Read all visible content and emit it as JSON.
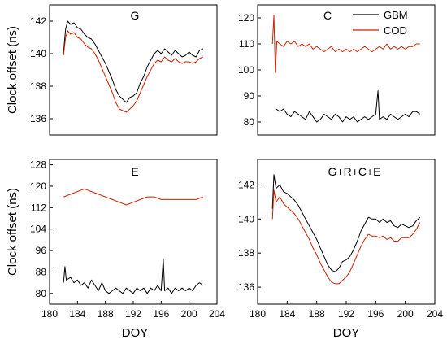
{
  "chart_data": [
    {
      "type": "line",
      "title": "G",
      "ylabel": "Clock offset (ns)",
      "xlabel": "",
      "xlim": [
        180,
        204
      ],
      "ylim": [
        135,
        143
      ],
      "yticks": [
        136,
        138,
        140,
        142
      ],
      "grid": false,
      "series": [
        {
          "name": "GBM",
          "color": "#000000",
          "x": [
            182.0,
            182.3,
            182.6,
            183.0,
            183.5,
            184.0,
            184.5,
            185.0,
            185.5,
            186.0,
            186.5,
            187.0,
            187.5,
            188.0,
            188.5,
            189.0,
            189.5,
            190.0,
            190.5,
            191.0,
            191.5,
            192.0,
            192.5,
            193.0,
            193.5,
            194.0,
            194.5,
            195.0,
            195.5,
            196.0,
            196.5,
            197.0,
            197.5,
            198.0,
            198.5,
            199.0,
            199.5,
            200.0,
            200.5,
            201.0,
            201.5,
            202.0
          ],
          "y": [
            140.1,
            141.5,
            142.0,
            141.8,
            141.9,
            141.6,
            141.5,
            141.2,
            141.0,
            140.9,
            140.6,
            140.2,
            139.8,
            139.4,
            138.9,
            138.4,
            137.8,
            137.4,
            137.2,
            137.0,
            137.3,
            137.4,
            137.6,
            138.2,
            138.6,
            139.2,
            139.6,
            140.0,
            140.2,
            140.0,
            140.3,
            140.1,
            139.9,
            140.2,
            140.0,
            139.8,
            139.9,
            140.1,
            139.9,
            139.8,
            140.2,
            140.3
          ]
        },
        {
          "name": "COD",
          "color": "#cc2200",
          "x": [
            182.0,
            182.3,
            182.6,
            183.0,
            183.5,
            184.0,
            184.5,
            185.0,
            185.5,
            186.0,
            186.5,
            187.0,
            187.5,
            188.0,
            188.5,
            189.0,
            189.5,
            190.0,
            190.5,
            191.0,
            191.5,
            192.0,
            192.5,
            193.0,
            193.5,
            194.0,
            194.5,
            195.0,
            195.5,
            196.0,
            196.5,
            197.0,
            197.5,
            198.0,
            198.5,
            199.0,
            199.5,
            200.0,
            200.5,
            201.0,
            201.5,
            202.0
          ],
          "y": [
            139.9,
            141.0,
            141.4,
            141.2,
            141.3,
            141.0,
            140.9,
            140.6,
            140.4,
            140.3,
            140.0,
            139.6,
            139.1,
            138.6,
            138.1,
            137.6,
            137.0,
            136.6,
            136.5,
            136.4,
            136.6,
            136.8,
            137.1,
            137.6,
            138.1,
            138.6,
            139.0,
            139.4,
            139.6,
            139.5,
            139.8,
            139.6,
            139.5,
            139.7,
            139.5,
            139.4,
            139.5,
            139.5,
            139.4,
            139.5,
            139.7,
            139.8
          ]
        }
      ]
    },
    {
      "type": "line",
      "title": "C",
      "ylabel": "",
      "xlabel": "",
      "xlim": [
        180,
        204
      ],
      "ylim": [
        75,
        125
      ],
      "yticks": [
        80,
        90,
        100,
        110,
        120
      ],
      "grid": false,
      "series": [
        {
          "name": "GBM",
          "color": "#000000",
          "x": [
            182.5,
            183.0,
            183.5,
            184.0,
            184.5,
            185.0,
            185.5,
            186.0,
            186.5,
            187.0,
            187.5,
            188.0,
            188.5,
            189.0,
            189.5,
            190.0,
            190.5,
            191.0,
            191.5,
            192.0,
            192.5,
            193.0,
            193.5,
            194.0,
            194.5,
            195.0,
            195.5,
            196.0,
            196.3,
            196.5,
            197.0,
            197.5,
            198.0,
            198.5,
            199.0,
            199.5,
            200.0,
            200.5,
            201.0,
            201.5,
            202.0
          ],
          "y": [
            85,
            84,
            85,
            83,
            82,
            84,
            83,
            82,
            81,
            84,
            82,
            80,
            81,
            83,
            82,
            81,
            83,
            82,
            80,
            82,
            81,
            82,
            80,
            81,
            82,
            81,
            82,
            83,
            92,
            81,
            82,
            81,
            83,
            82,
            81,
            82,
            83,
            82,
            84,
            84,
            83
          ]
        },
        {
          "name": "COD",
          "color": "#cc2200",
          "x": [
            182.0,
            182.2,
            182.4,
            182.6,
            183.0,
            183.5,
            184.0,
            184.5,
            185.0,
            185.5,
            186.0,
            186.5,
            187.0,
            187.5,
            188.0,
            188.5,
            189.0,
            189.5,
            190.0,
            190.5,
            191.0,
            191.5,
            192.0,
            192.5,
            193.0,
            193.5,
            194.0,
            194.5,
            195.0,
            195.5,
            196.0,
            196.5,
            197.0,
            197.5,
            198.0,
            198.5,
            199.0,
            199.5,
            200.0,
            200.5,
            201.0,
            201.5,
            202.0
          ],
          "y": [
            110,
            121,
            99,
            111,
            110,
            109,
            111,
            110,
            111,
            109,
            110,
            109,
            110,
            108,
            109,
            108,
            107,
            108,
            109,
            107,
            108,
            107,
            108,
            107,
            108,
            107,
            108,
            109,
            108,
            107,
            108,
            109,
            108,
            110,
            108,
            109,
            108,
            109,
            108,
            109,
            109,
            110,
            110
          ]
        }
      ]
    },
    {
      "type": "line",
      "title": "E",
      "ylabel": "Clock offset (ns)",
      "xlabel": "DOY",
      "xlim": [
        180,
        204
      ],
      "ylim": [
        76,
        130
      ],
      "yticks": [
        80,
        88,
        96,
        104,
        112,
        120,
        128
      ],
      "xticks": [
        180,
        184,
        188,
        192,
        196,
        200,
        204
      ],
      "grid": false,
      "series": [
        {
          "name": "GBM",
          "color": "#000000",
          "x": [
            182.0,
            182.2,
            182.4,
            183.0,
            183.5,
            184.0,
            184.5,
            185.0,
            185.5,
            186.0,
            186.5,
            187.0,
            187.5,
            188.0,
            188.5,
            189.0,
            189.5,
            190.0,
            190.5,
            191.0,
            191.5,
            192.0,
            192.5,
            193.0,
            193.5,
            194.0,
            194.5,
            195.0,
            195.5,
            196.0,
            196.3,
            196.5,
            197.0,
            197.5,
            198.0,
            198.5,
            199.0,
            199.5,
            200.0,
            200.5,
            201.0,
            201.5,
            202.0
          ],
          "y": [
            84,
            90,
            85,
            86,
            84,
            85,
            83,
            84,
            82,
            85,
            83,
            81,
            84,
            81,
            80,
            81,
            82,
            81,
            80,
            82,
            81,
            80,
            82,
            81,
            82,
            80,
            82,
            81,
            83,
            81,
            93,
            81,
            82,
            80,
            82,
            81,
            82,
            81,
            82,
            81,
            83,
            84,
            83
          ]
        },
        {
          "name": "COD",
          "color": "#cc2200",
          "x": [
            182.0,
            183.0,
            184.0,
            185.0,
            186.0,
            187.0,
            188.0,
            189.0,
            190.0,
            191.0,
            192.0,
            193.0,
            194.0,
            195.0,
            196.0,
            197.0,
            198.0,
            199.0,
            200.0,
            201.0,
            202.0
          ],
          "y": [
            116,
            117,
            118,
            119,
            118,
            117,
            116,
            115,
            114,
            113,
            114,
            115,
            116,
            116,
            115,
            115,
            115,
            115,
            115,
            115,
            116
          ]
        }
      ]
    },
    {
      "type": "line",
      "title": "G+R+C+E",
      "ylabel": "",
      "xlabel": "DOY",
      "xlim": [
        180,
        204
      ],
      "ylim": [
        135,
        143.5
      ],
      "yticks": [
        136,
        138,
        140,
        142
      ],
      "xticks": [
        180,
        184,
        188,
        192,
        196,
        200,
        204
      ],
      "grid": false,
      "series": [
        {
          "name": "GBM",
          "color": "#000000",
          "x": [
            182.0,
            182.2,
            182.5,
            183.0,
            183.5,
            184.0,
            184.5,
            185.0,
            185.5,
            186.0,
            186.5,
            187.0,
            187.5,
            188.0,
            188.5,
            189.0,
            189.5,
            190.0,
            190.5,
            191.0,
            191.5,
            192.0,
            192.5,
            193.0,
            193.5,
            194.0,
            194.5,
            195.0,
            195.5,
            196.0,
            196.5,
            197.0,
            197.5,
            198.0,
            198.5,
            199.0,
            199.5,
            200.0,
            200.5,
            201.0,
            201.5,
            202.0
          ],
          "y": [
            140.6,
            142.6,
            141.8,
            142.0,
            141.6,
            141.5,
            141.3,
            141.1,
            140.8,
            140.4,
            140.0,
            139.6,
            139.2,
            138.8,
            138.3,
            137.8,
            137.3,
            137.0,
            136.9,
            137.1,
            137.5,
            137.6,
            137.8,
            138.2,
            138.7,
            139.3,
            139.7,
            140.1,
            140.0,
            140.0,
            139.8,
            140.0,
            139.8,
            139.9,
            139.6,
            139.5,
            139.7,
            139.6,
            139.5,
            139.6,
            139.9,
            140.1
          ]
        },
        {
          "name": "COD",
          "color": "#cc2200",
          "x": [
            182.0,
            182.2,
            182.5,
            183.0,
            183.5,
            184.0,
            184.5,
            185.0,
            185.5,
            186.0,
            186.5,
            187.0,
            187.5,
            188.0,
            188.5,
            189.0,
            189.5,
            190.0,
            190.5,
            191.0,
            191.5,
            192.0,
            192.5,
            193.0,
            193.5,
            194.0,
            194.5,
            195.0,
            195.5,
            196.0,
            196.5,
            197.0,
            197.5,
            198.0,
            198.5,
            199.0,
            199.5,
            200.0,
            200.5,
            201.0,
            201.5,
            202.0
          ],
          "y": [
            140.0,
            141.7,
            141.0,
            141.3,
            140.9,
            140.7,
            140.5,
            140.3,
            140.0,
            139.6,
            139.2,
            138.8,
            138.3,
            137.9,
            137.4,
            137.0,
            136.6,
            136.3,
            136.2,
            136.2,
            136.4,
            136.6,
            136.9,
            137.4,
            137.9,
            138.4,
            138.8,
            139.1,
            139.0,
            139.0,
            138.9,
            139.0,
            138.8,
            138.9,
            138.7,
            138.7,
            138.9,
            138.9,
            138.9,
            139.1,
            139.4,
            139.8
          ]
        }
      ]
    }
  ]
}
